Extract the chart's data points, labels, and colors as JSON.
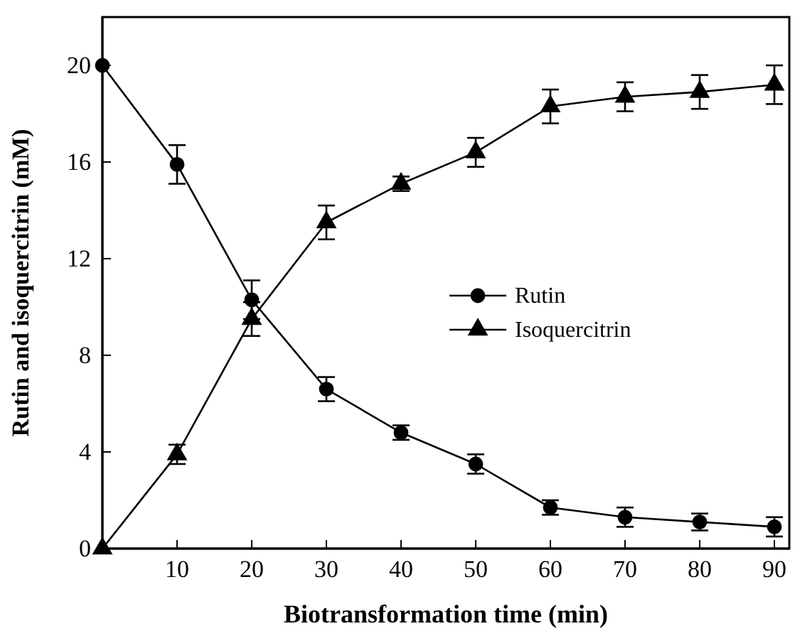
{
  "chart_data": {
    "type": "line",
    "xlabel": "Biotransformation time (min)",
    "ylabel": "Rutin and isoquercitrin (mM)",
    "x": [
      0,
      10,
      20,
      30,
      40,
      50,
      60,
      70,
      80,
      90
    ],
    "xlim": [
      0,
      92
    ],
    "xticks": [
      10,
      20,
      30,
      40,
      50,
      60,
      70,
      80,
      90
    ],
    "ylim": [
      0,
      22
    ],
    "yticks": [
      0,
      4,
      8,
      12,
      16,
      20
    ],
    "legend": "right",
    "line_style": "solid",
    "series": [
      {
        "name": "Rutin",
        "color": "#000000",
        "marker": "circle",
        "values": [
          20,
          15.9,
          10.3,
          6.6,
          4.8,
          3.5,
          1.7,
          1.3,
          1.1,
          0.9
        ],
        "errors": [
          null,
          0.8,
          0.8,
          0.5,
          0.3,
          0.4,
          0.3,
          0.4,
          0.35,
          0.4
        ]
      },
      {
        "name": "Isoquercitrin",
        "color": "#000000",
        "marker": "triangle",
        "values": [
          0,
          3.9,
          9.5,
          13.5,
          15.1,
          16.4,
          18.3,
          18.7,
          18.9,
          19.2
        ],
        "errors": [
          null,
          0.4,
          0.7,
          0.7,
          0.3,
          0.6,
          0.7,
          0.6,
          0.7,
          0.8
        ]
      }
    ]
  }
}
